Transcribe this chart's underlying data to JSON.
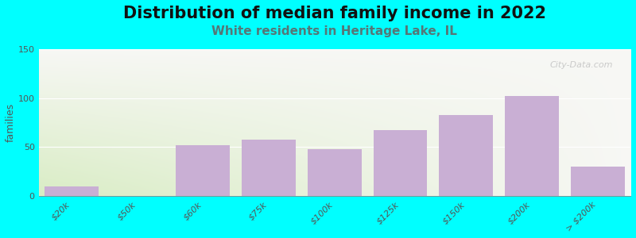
{
  "title": "Distribution of median family income in 2022",
  "subtitle": "White residents in Heritage Lake, IL",
  "ylabel": "families",
  "categories": [
    "$20k",
    "$50k",
    "$60k",
    "$75k",
    "$100k",
    "$125k",
    "$150k",
    "$200k",
    "> $200k"
  ],
  "values": [
    10,
    0,
    52,
    58,
    48,
    67,
    83,
    102,
    30
  ],
  "bar_color": "#c9afd4",
  "background_outer": "#00ffff",
  "grad_color_left": "#cce8b0",
  "grad_color_right": "#f5f5f0",
  "ylim": [
    0,
    150
  ],
  "yticks": [
    0,
    50,
    100,
    150
  ],
  "title_fontsize": 15,
  "subtitle_fontsize": 11,
  "subtitle_color": "#557777",
  "ylabel_fontsize": 9,
  "tick_label_fontsize": 8,
  "bar_width": 0.82,
  "watermark": "City-Data.com"
}
